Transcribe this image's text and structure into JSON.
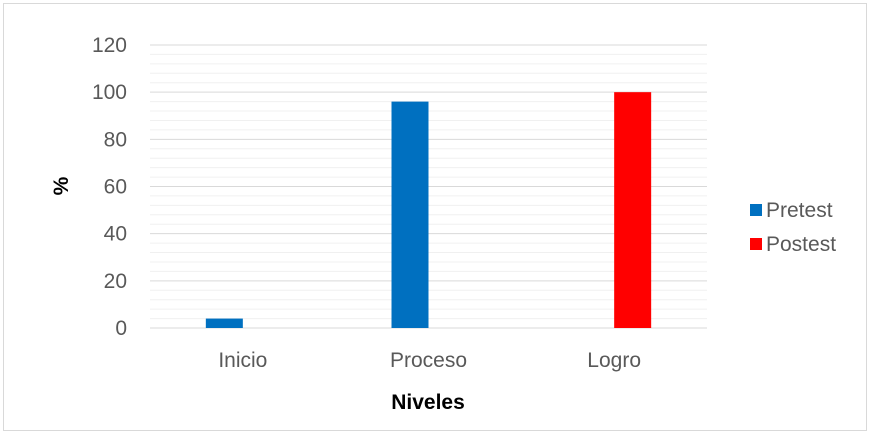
{
  "chart_data": {
    "type": "bar",
    "title": "",
    "xlabel": "Niveles",
    "ylabel": "%",
    "categories": [
      "Inicio",
      "Proceso",
      "Logro"
    ],
    "series": [
      {
        "name": "Pretest",
        "values": [
          4,
          96,
          0
        ],
        "color": "#0070C0"
      },
      {
        "name": "Postest",
        "values": [
          0,
          0,
          100
        ],
        "color": "#FF0000"
      }
    ],
    "ylim": [
      0,
      120
    ],
    "yticks": [
      0,
      20,
      40,
      60,
      80,
      100,
      120
    ],
    "grid": true,
    "legend_position": "right"
  }
}
